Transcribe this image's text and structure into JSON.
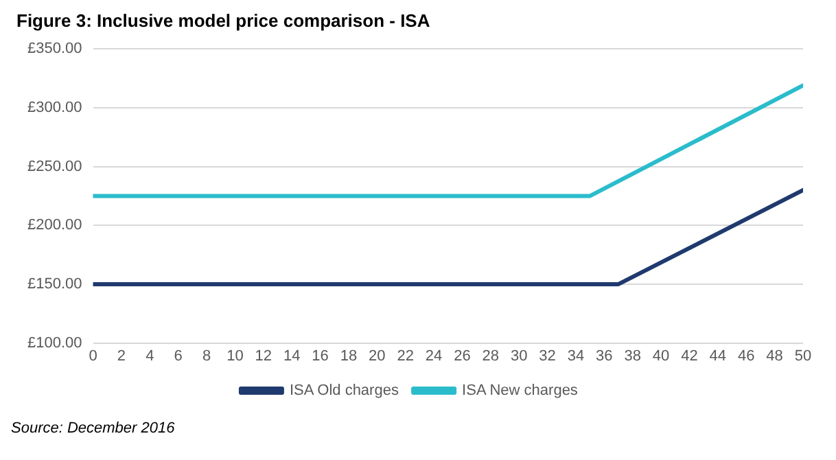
{
  "chart_data": {
    "type": "line",
    "title": "Figure 3: Inclusive model price comparison - ISA",
    "annotations": [
      "Source: December 2016"
    ],
    "xlim": [
      0,
      50
    ],
    "xticks": [
      0,
      2,
      4,
      6,
      8,
      10,
      12,
      14,
      16,
      18,
      20,
      22,
      24,
      26,
      28,
      30,
      32,
      34,
      36,
      38,
      40,
      42,
      44,
      46,
      48,
      50
    ],
    "ylim": [
      100,
      350
    ],
    "yticks": [
      {
        "value": 100,
        "label": "£100.00"
      },
      {
        "value": 150,
        "label": "£150.00"
      },
      {
        "value": 200,
        "label": "£200.00"
      },
      {
        "value": 250,
        "label": "£250.00"
      },
      {
        "value": 300,
        "label": "£300.00"
      },
      {
        "value": 350,
        "label": "£350.00"
      }
    ],
    "grid": "y",
    "legend": "bottom",
    "marker": "none",
    "line_style": "solid",
    "series": [
      {
        "name": "ISA Old charges",
        "color": "#1f3a6e",
        "x": [
          0,
          37,
          50
        ],
        "values": [
          150,
          150,
          230
        ]
      },
      {
        "name": "ISA New charges",
        "color": "#2bbccc",
        "x": [
          0,
          35,
          50
        ],
        "values": [
          225,
          225,
          319
        ]
      }
    ]
  }
}
